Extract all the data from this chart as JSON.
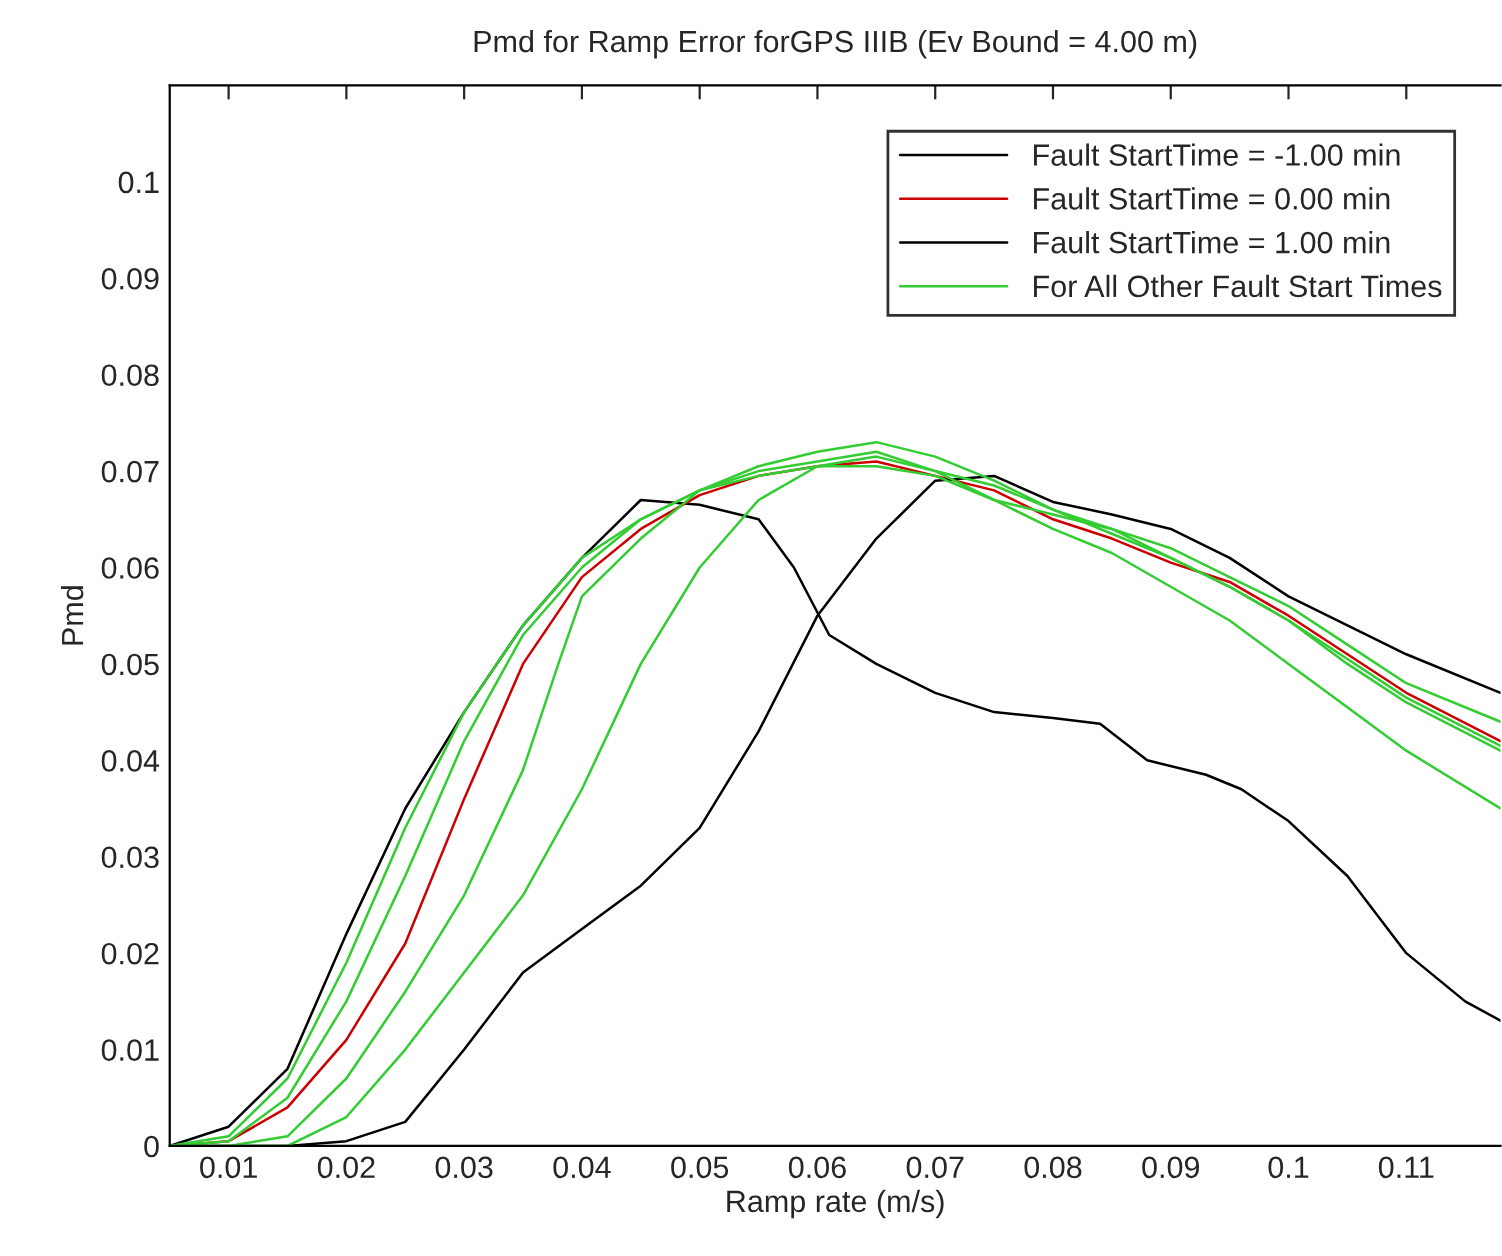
{
  "chart_data": {
    "type": "line",
    "title": "Pmd for Ramp Error forGPS IIIB (Ev Bound = 4.00 m)",
    "xlabel": "Ramp rate (m/s)",
    "ylabel": "Pmd",
    "xlim": [
      0.005,
      0.118
    ],
    "ylim": [
      0,
      0.11
    ],
    "xticks": [
      0.01,
      0.02,
      0.03,
      0.04,
      0.05,
      0.06,
      0.07,
      0.08,
      0.09,
      0.1,
      0.11
    ],
    "yticks": [
      0,
      0.01,
      0.02,
      0.03,
      0.04,
      0.05,
      0.06,
      0.07,
      0.08,
      0.09,
      0.1
    ],
    "grid": false,
    "legend": "top right",
    "marker": "none",
    "line_style": "solid",
    "series": [
      {
        "name": "Fault StartTime = -1.00 min",
        "color": "#000000",
        "x": [
          0.005,
          0.01,
          0.015,
          0.02,
          0.025,
          0.03,
          0.035,
          0.04,
          0.045,
          0.05,
          0.055,
          0.058,
          0.061,
          0.065,
          0.07,
          0.075,
          0.08,
          0.084,
          0.088,
          0.093,
          0.096,
          0.1,
          0.105,
          0.11,
          0.115,
          0.118
        ],
        "values": [
          0,
          0.002,
          0.008,
          0.022,
          0.035,
          0.045,
          0.054,
          0.061,
          0.067,
          0.0665,
          0.065,
          0.06,
          0.053,
          0.05,
          0.047,
          0.045,
          0.0444,
          0.0438,
          0.04,
          0.0385,
          0.037,
          0.0337,
          0.028,
          0.02,
          0.015,
          0.013
        ]
      },
      {
        "name": "Fault StartTime = 0.00 min",
        "color": "#cc0000",
        "x": [
          0.005,
          0.01,
          0.015,
          0.02,
          0.025,
          0.03,
          0.035,
          0.04,
          0.045,
          0.05,
          0.055,
          0.06,
          0.065,
          0.07,
          0.075,
          0.08,
          0.085,
          0.09,
          0.095,
          0.1,
          0.105,
          0.11,
          0.118
        ],
        "values": [
          0,
          0.0005,
          0.004,
          0.011,
          0.021,
          0.036,
          0.05,
          0.059,
          0.064,
          0.0675,
          0.0695,
          0.0705,
          0.071,
          0.0695,
          0.068,
          0.065,
          0.063,
          0.0605,
          0.0585,
          0.055,
          0.051,
          0.047,
          0.042
        ]
      },
      {
        "name": "Fault StartTime = 1.00 min",
        "color": "#000000",
        "x": [
          0.005,
          0.015,
          0.02,
          0.025,
          0.03,
          0.035,
          0.04,
          0.045,
          0.05,
          0.055,
          0.06,
          0.065,
          0.07,
          0.075,
          0.08,
          0.085,
          0.09,
          0.095,
          0.1,
          0.105,
          0.11,
          0.118
        ],
        "values": [
          0,
          0,
          0.0005,
          0.0025,
          0.01,
          0.018,
          0.0225,
          0.027,
          0.033,
          0.043,
          0.055,
          0.063,
          0.069,
          0.0695,
          0.0668,
          0.0655,
          0.064,
          0.061,
          0.057,
          0.054,
          0.051,
          0.047
        ]
      },
      {
        "name": "For All Other Fault Start Times",
        "color": "#33cc33",
        "x": [
          0.005,
          0.01,
          0.015,
          0.02,
          0.025,
          0.03,
          0.035,
          0.04,
          0.045,
          0.05,
          0.055,
          0.06,
          0.065,
          0.07,
          0.075,
          0.08,
          0.085,
          0.09,
          0.095,
          0.1,
          0.105,
          0.11,
          0.118
        ],
        "values": [
          0,
          0.001,
          0.007,
          0.019,
          0.033,
          0.045,
          0.054,
          0.061,
          0.065,
          0.068,
          0.0695,
          0.0705,
          0.0705,
          0.0695,
          0.067,
          0.0655,
          0.064,
          0.062,
          0.059,
          0.056,
          0.052,
          0.048,
          0.044
        ]
      },
      {
        "color": "#33cc33",
        "x": [
          0.005,
          0.01,
          0.015,
          0.02,
          0.025,
          0.03,
          0.035,
          0.04,
          0.045,
          0.05,
          0.055,
          0.06,
          0.065,
          0.07,
          0.075,
          0.08,
          0.085,
          0.09,
          0.095,
          0.1,
          0.105,
          0.11,
          0.118
        ],
        "values": [
          0,
          0.0005,
          0.005,
          0.015,
          0.028,
          0.042,
          0.053,
          0.06,
          0.065,
          0.068,
          0.07,
          0.071,
          0.072,
          0.07,
          0.0685,
          0.066,
          0.0635,
          0.061,
          0.058,
          0.0545,
          0.05,
          0.046,
          0.041
        ]
      },
      {
        "color": "#33cc33",
        "x": [
          0.005,
          0.01,
          0.015,
          0.02,
          0.025,
          0.03,
          0.035,
          0.038,
          0.04,
          0.045,
          0.05,
          0.055,
          0.06,
          0.065,
          0.07,
          0.075,
          0.08,
          0.085,
          0.09,
          0.095,
          0.1,
          0.105,
          0.11,
          0.118
        ],
        "values": [
          0,
          0,
          0.001,
          0.007,
          0.016,
          0.026,
          0.039,
          0.05,
          0.057,
          0.063,
          0.068,
          0.0705,
          0.072,
          0.073,
          0.0715,
          0.069,
          0.066,
          0.064,
          0.061,
          0.058,
          0.0545,
          0.0505,
          0.0465,
          0.0415
        ]
      },
      {
        "color": "#33cc33",
        "x": [
          0.005,
          0.015,
          0.02,
          0.025,
          0.03,
          0.035,
          0.04,
          0.045,
          0.05,
          0.055,
          0.06,
          0.065,
          0.07,
          0.075,
          0.08,
          0.085,
          0.09,
          0.095,
          0.1,
          0.105,
          0.11,
          0.118
        ],
        "values": [
          0,
          0,
          0.003,
          0.01,
          0.018,
          0.026,
          0.037,
          0.05,
          0.06,
          0.067,
          0.0705,
          0.0715,
          0.07,
          0.067,
          0.064,
          0.0615,
          0.058,
          0.0545,
          0.05,
          0.0455,
          0.041,
          0.035
        ]
      }
    ]
  }
}
